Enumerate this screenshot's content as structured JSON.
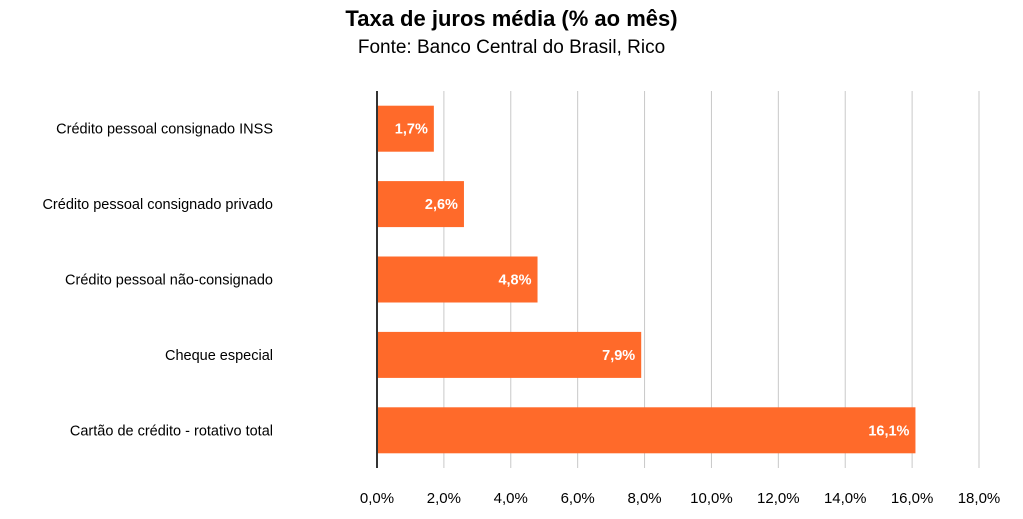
{
  "chart_data": {
    "type": "bar",
    "orientation": "horizontal",
    "title": "Taxa de juros média (% ao mês)",
    "subtitle": "Fonte: Banco Central do Brasil, Rico",
    "categories": [
      "Crédito pessoal consignado INSS",
      "Crédito pessoal consignado privado",
      "Crédito pessoal não-consignado",
      "Cheque especial",
      "Cartão de crédito - rotativo total"
    ],
    "values": [
      1.7,
      2.6,
      4.8,
      7.9,
      16.1
    ],
    "data_labels": [
      "1,7%",
      "2,6%",
      "4,8%",
      "7,9%",
      "16,1%"
    ],
    "x_ticks": [
      "0,0%",
      "2,0%",
      "4,0%",
      "6,0%",
      "8,0%",
      "10,0%",
      "12,0%",
      "14,0%",
      "16,0%",
      "18,0%"
    ],
    "xlim": [
      0,
      18
    ],
    "grid": true,
    "legend": "none",
    "bar_color": "#ff6a2a",
    "grid_color": "#c8c8c8",
    "axis_color": "#333333"
  }
}
